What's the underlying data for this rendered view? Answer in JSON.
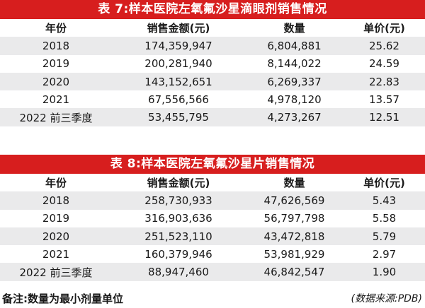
{
  "table7": {
    "title": "表 7:样本医院左氧氟沙星滴眼剂销售情况",
    "headers": [
      "年份",
      "销售金额(元)",
      "数量",
      "单价(元)"
    ],
    "rows": [
      [
        "2018",
        "174,359,947",
        "6,804,881",
        "25.62"
      ],
      [
        "2019",
        "200,281,940",
        "8,144,022",
        "24.59"
      ],
      [
        "2020",
        "143,152,651",
        "6,269,337",
        "22.83"
      ],
      [
        "2021",
        "67,556,566",
        "4,978,120",
        "13.57"
      ],
      [
        "2022 前三季度",
        "53,455,795",
        "4,273,267",
        "12.51"
      ]
    ]
  },
  "table8": {
    "title": "表 8:样本医院左氧氟沙星片销售情况",
    "headers": [
      "年份",
      "销售金额(元)",
      "数量",
      "单价(元)"
    ],
    "rows": [
      [
        "2018",
        "258,730,933",
        "47,626,569",
        "5.43"
      ],
      [
        "2019",
        "316,903,636",
        "56,797,798",
        "5.58"
      ],
      [
        "2020",
        "251,523,110",
        "43,472,818",
        "5.79"
      ],
      [
        "2021",
        "160,379,946",
        "53,981,929",
        "2.97"
      ],
      [
        "2022 前三季度",
        "88,947,460",
        "46,842,547",
        "1.90"
      ]
    ]
  },
  "footer": {
    "note": "备注:数量为最小剂量单位",
    "source": "(数据来源:PDB)"
  },
  "colors": {
    "title_bg": "#d71e1e",
    "row_shade": "#eaeaeb"
  }
}
